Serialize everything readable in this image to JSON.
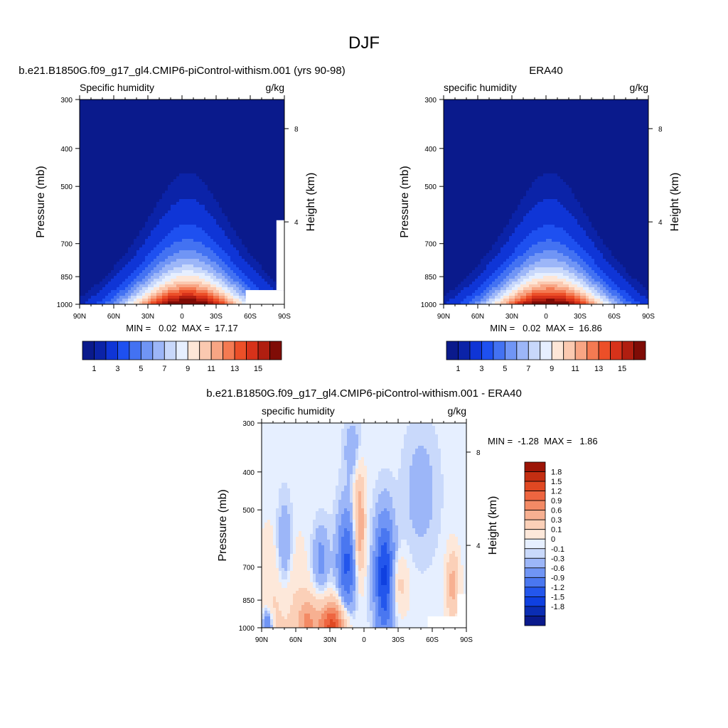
{
  "figure": {
    "title": "DJF"
  },
  "palette": {
    "full_colors": [
      "#0a1a8c",
      "#0b23a8",
      "#0f35d6",
      "#1e50f0",
      "#4372f2",
      "#7095f5",
      "#9cb6f8",
      "#c8d8fb",
      "#e6efff",
      "#fde6d7",
      "#fbc9b0",
      "#f8a584",
      "#f47a52",
      "#ec4f28",
      "#d7321a",
      "#b01e10",
      "#7f0c06"
    ],
    "diff_colors": [
      "#0a1a8c",
      "#0b2db3",
      "#0f40e0",
      "#2356ec",
      "#4a77f0",
      "#7095f5",
      "#9cb6f8",
      "#c9d9fb",
      "#e6efff",
      "#fde8da",
      "#fbd0b8",
      "#f7b091",
      "#f38a65",
      "#ee6540",
      "#e04822",
      "#c42e12",
      "#9c1406"
    ]
  },
  "chart_data": [
    {
      "type": "contour",
      "panel": "model",
      "title": "b.e21.B1850G.f09_g17_gl4.CMIP6-piControl-withism.001 (yrs 90-98)",
      "left_string": "Specific humidity",
      "right_string": "g/kg",
      "ylabel": "Pressure (mb)",
      "y2label": "Height (km)",
      "x_ticks": [
        "90N",
        "60N",
        "30N",
        "0",
        "30S",
        "60S",
        "90S"
      ],
      "x_values": [
        90,
        60,
        30,
        0,
        -30,
        -60,
        -90
      ],
      "y_ticks": [
        "300",
        "400",
        "500",
        "700",
        "850",
        "1000"
      ],
      "y_values": [
        300,
        400,
        500,
        700,
        850,
        1000
      ],
      "ylim": [
        1000,
        300
      ],
      "y2_ticks": [
        "8",
        "4"
      ],
      "y2_values": [
        8,
        4
      ],
      "y2_pressure": [
        356,
        616
      ],
      "stats": "MIN =   0.02  MAX =  17.17",
      "min": 0.02,
      "max": 17.17,
      "colorbar_labels": [
        "1",
        "3",
        "5",
        "7",
        "9",
        "11",
        "13",
        "15"
      ],
      "levels": [
        0.5,
        1,
        2,
        3,
        4,
        5,
        6,
        7,
        8,
        9,
        10,
        11,
        12,
        13,
        14,
        15
      ],
      "field": {
        "peak_lat": -5,
        "peak_value": 17.17,
        "blank_region": true
      },
      "colorbar_type": "horizontal"
    },
    {
      "type": "contour",
      "panel": "obs",
      "title": "ERA40",
      "left_string": "specific humidity",
      "right_string": "g/kg",
      "ylabel": "Pressure (mb)",
      "y2label": "Height (km)",
      "x_ticks": [
        "90N",
        "60N",
        "30N",
        "0",
        "30S",
        "60S",
        "90S"
      ],
      "x_values": [
        90,
        60,
        30,
        0,
        -30,
        -60,
        -90
      ],
      "y_ticks": [
        "300",
        "400",
        "500",
        "700",
        "850",
        "1000"
      ],
      "y_values": [
        300,
        400,
        500,
        700,
        850,
        1000
      ],
      "ylim": [
        1000,
        300
      ],
      "y2_ticks": [
        "8",
        "4"
      ],
      "y2_values": [
        8,
        4
      ],
      "y2_pressure": [
        356,
        616
      ],
      "stats": "MIN =   0.02  MAX =  16.86",
      "min": 0.02,
      "max": 16.86,
      "colorbar_labels": [
        "1",
        "3",
        "5",
        "7",
        "9",
        "11",
        "13",
        "15"
      ],
      "levels": [
        0.5,
        1,
        2,
        3,
        4,
        5,
        6,
        7,
        8,
        9,
        10,
        11,
        12,
        13,
        14,
        15
      ],
      "field": {
        "peak_lat": -3,
        "peak_value": 16.86,
        "blank_region": false
      },
      "colorbar_type": "horizontal"
    },
    {
      "type": "contour",
      "panel": "diff",
      "title": "b.e21.B1850G.f09_g17_gl4.CMIP6-piControl-withism.001 - ERA40",
      "left_string": "specific humidity",
      "right_string": "g/kg",
      "ylabel": "Pressure (mb)",
      "y2label": "Height (km)",
      "x_ticks": [
        "90N",
        "60N",
        "30N",
        "0",
        "30S",
        "60S",
        "90S"
      ],
      "x_values": [
        90,
        60,
        30,
        0,
        -30,
        -60,
        -90
      ],
      "y_ticks": [
        "300",
        "400",
        "500",
        "700",
        "850",
        "1000"
      ],
      "y_values": [
        300,
        400,
        500,
        700,
        850,
        1000
      ],
      "ylim": [
        1000,
        300
      ],
      "y2_ticks": [
        "8",
        "4"
      ],
      "y2_values": [
        8,
        4
      ],
      "y2_pressure": [
        356,
        616
      ],
      "stats": "MIN =  -1.28  MAX =   1.86",
      "min": -1.28,
      "max": 1.86,
      "colorbar_labels": [
        "1.8",
        "1.5",
        "1.2",
        "0.9",
        "0.6",
        "0.3",
        "0.1",
        "0",
        "-0.1",
        "-0.3",
        "-0.6",
        "-0.9",
        "-1.2",
        "-1.5",
        "-1.8"
      ],
      "levels": [
        -1.8,
        -1.5,
        -1.2,
        -0.9,
        -0.6,
        -0.3,
        -0.1,
        0,
        0.1,
        0.3,
        0.6,
        0.9,
        1.2,
        1.5,
        1.8
      ],
      "colorbar_type": "vertical"
    }
  ]
}
